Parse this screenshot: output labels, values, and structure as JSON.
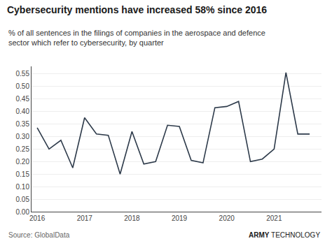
{
  "chart_data": {
    "type": "line",
    "title": "Cybersecurity mentions have increased 58% since 2016",
    "subtitle": "% of all sentences in the filings of companies in the aerospace and defence\nsector which refer to cybersecurity, by quarter",
    "annotations": [
      "Source: GlobalData",
      "ARMY",
      "TECHNOLOGY"
    ],
    "x": [
      2016.0,
      2016.25,
      2016.5,
      2016.75,
      2017.0,
      2017.25,
      2017.5,
      2017.75,
      2018.0,
      2018.25,
      2018.5,
      2018.75,
      2019.0,
      2019.25,
      2019.5,
      2019.75,
      2020.0,
      2020.25,
      2020.5,
      2020.75,
      2021.0,
      2021.25,
      2021.5,
      2021.75
    ],
    "values": [
      0.335,
      0.25,
      0.285,
      0.175,
      0.375,
      0.31,
      0.305,
      0.15,
      0.32,
      0.19,
      0.2,
      0.345,
      0.34,
      0.205,
      0.195,
      0.415,
      0.42,
      0.44,
      0.2,
      0.21,
      0.25,
      0.555,
      0.31,
      0.31
    ],
    "color": "#2d3a4a",
    "xlim": [
      2015.88,
      2022.0
    ],
    "xticks": [
      2016,
      2017,
      2018,
      2019,
      2020,
      2021
    ],
    "ylim": [
      0.0,
      0.58
    ],
    "yticks": [
      {
        "value": 0.0,
        "label": "0.00"
      },
      0.05,
      {
        "value": 0.1,
        "label": "0.10"
      },
      0.15,
      {
        "value": 0.2,
        "label": "0.20"
      },
      0.25,
      {
        "value": 0.3,
        "label": "0.30"
      },
      0.35,
      {
        "value": 0.4,
        "label": "0.40"
      },
      0.45,
      {
        "value": 0.5,
        "label": "0.50"
      },
      0.55
    ],
    "grid": true
  }
}
